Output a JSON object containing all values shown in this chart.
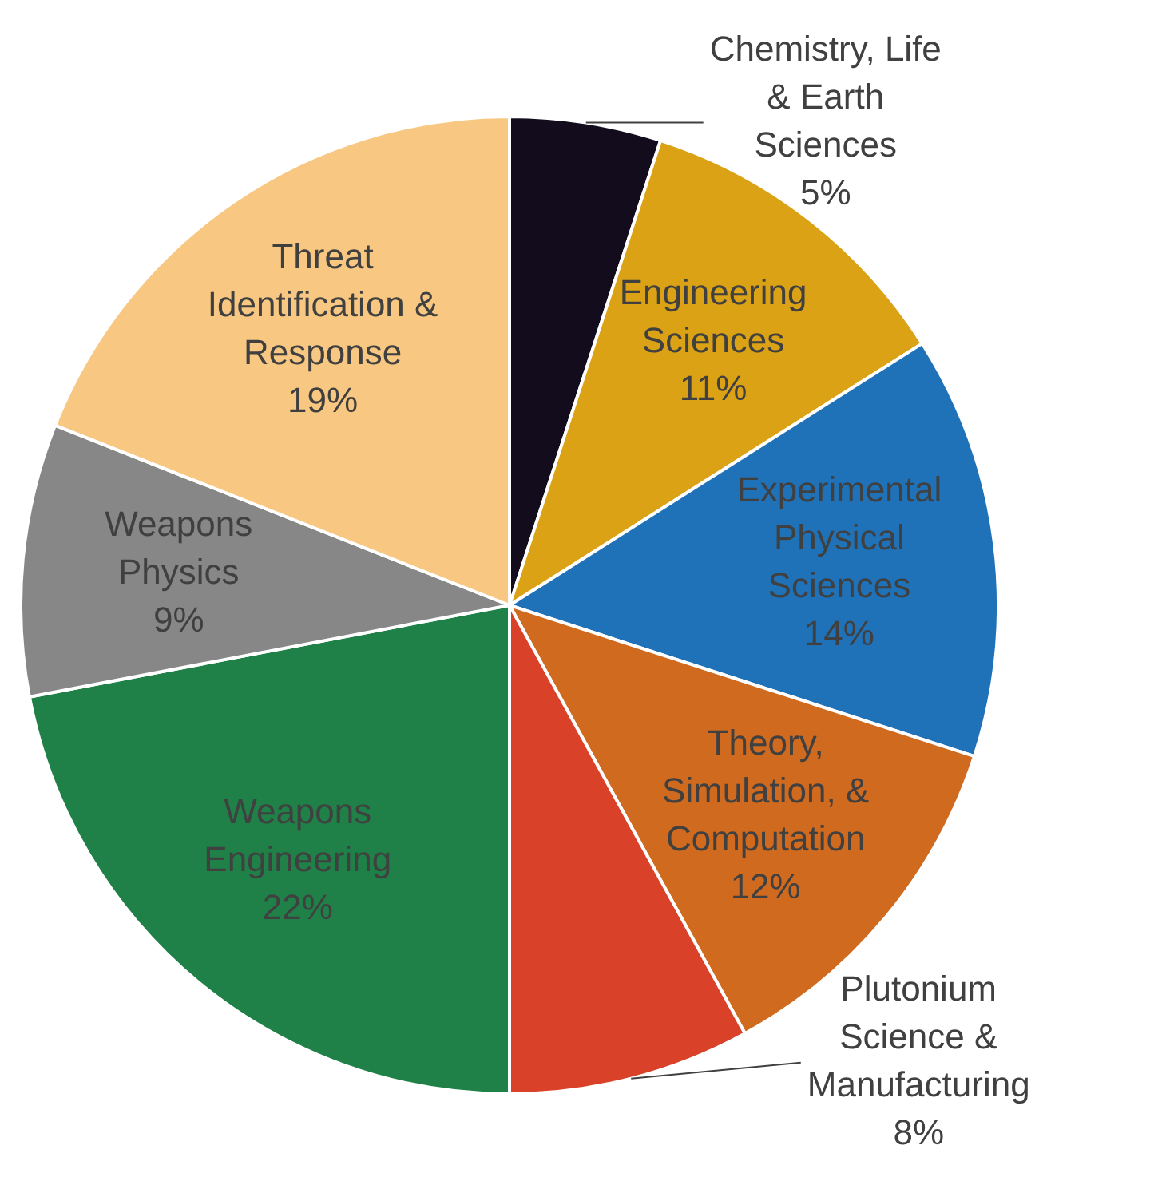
{
  "chart_data": {
    "type": "pie",
    "categories": [
      "Chemistry, Life & Earth Sciences",
      "Engineering Sciences",
      "Experimental Physical Sciences",
      "Theory, Simulation, & Computation",
      "Plutonium Science & Manufacturing",
      "Weapons Engineering",
      "Weapons Physics",
      "Threat Identification & Response"
    ],
    "values": [
      5,
      11,
      14,
      12,
      8,
      22,
      9,
      19
    ],
    "colors": [
      "#120c1c",
      "#dba215",
      "#2072b8",
      "#d06a1e",
      "#d94128",
      "#1f8048",
      "#878787",
      "#f8c883"
    ],
    "value_labels": [
      "5%",
      "11%",
      "14%",
      "12%",
      "8%",
      "22%",
      "9%",
      "19%"
    ],
    "legend": false
  }
}
